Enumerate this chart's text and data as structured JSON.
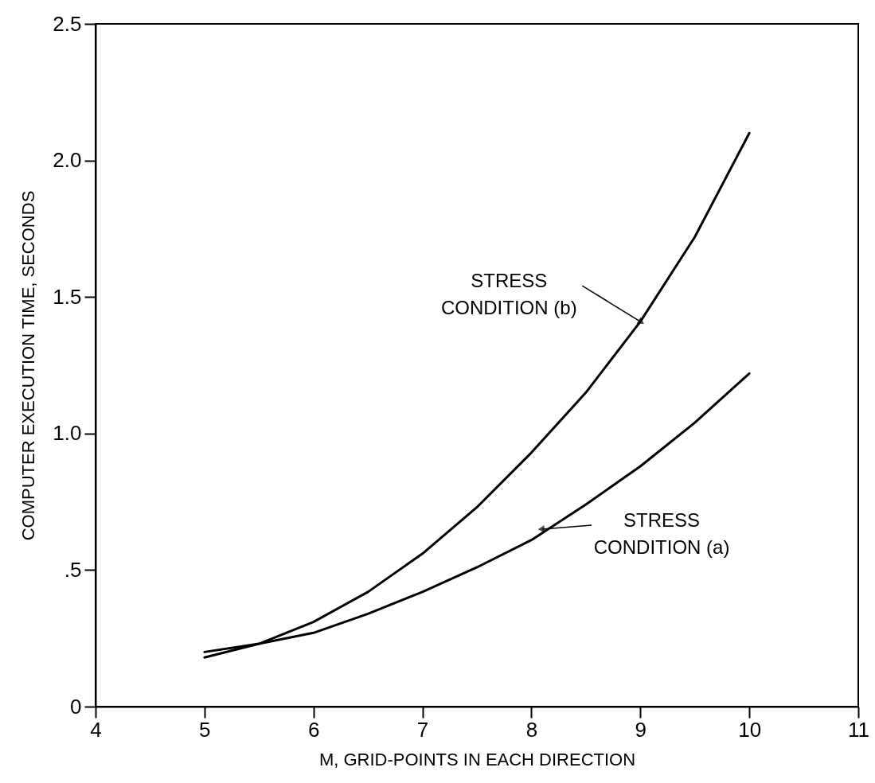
{
  "chart_data": {
    "type": "line",
    "xlabel": "M, GRID-POINTS IN EACH DIRECTION",
    "ylabel": "COMPUTER EXECUTION TIME, SECONDS",
    "x": [
      5,
      5.5,
      6,
      6.5,
      7,
      7.5,
      8,
      8.5,
      9,
      9.5,
      10
    ],
    "series": [
      {
        "color": "#000000",
        "values": [
          0.2,
          0.23,
          0.27,
          0.34,
          0.42,
          0.51,
          0.61,
          0.74,
          0.88,
          1.04,
          1.22
        ]
      },
      {
        "color": "#000000",
        "values": [
          0.18,
          0.23,
          0.31,
          0.42,
          0.56,
          0.73,
          0.93,
          1.15,
          1.41,
          1.72,
          2.1
        ]
      }
    ],
    "xlim": [
      4,
      11
    ],
    "xticks": [
      4,
      5,
      6,
      7,
      8,
      9,
      10,
      11
    ],
    "ylim": [
      0,
      2.5
    ],
    "yticks": [
      0,
      {
        "value": 0.5,
        "label": ".5"
      },
      {
        "value": 1,
        "label": "1.0"
      },
      {
        "value": 1.5,
        "label": "1.5"
      },
      {
        "value": 2,
        "label": "2.0"
      },
      {
        "value": 2.5,
        "label": "2.5"
      }
    ],
    "grid": false,
    "marker": "none",
    "line_style": "solid",
    "annotations": [
      {
        "text": "STRESS\nCONDITION (b)",
        "x": 9,
        "y": 1.41
      },
      {
        "text": "STRESS\nCONDITION (a)",
        "x": 8.1,
        "y": 0.65
      }
    ]
  }
}
